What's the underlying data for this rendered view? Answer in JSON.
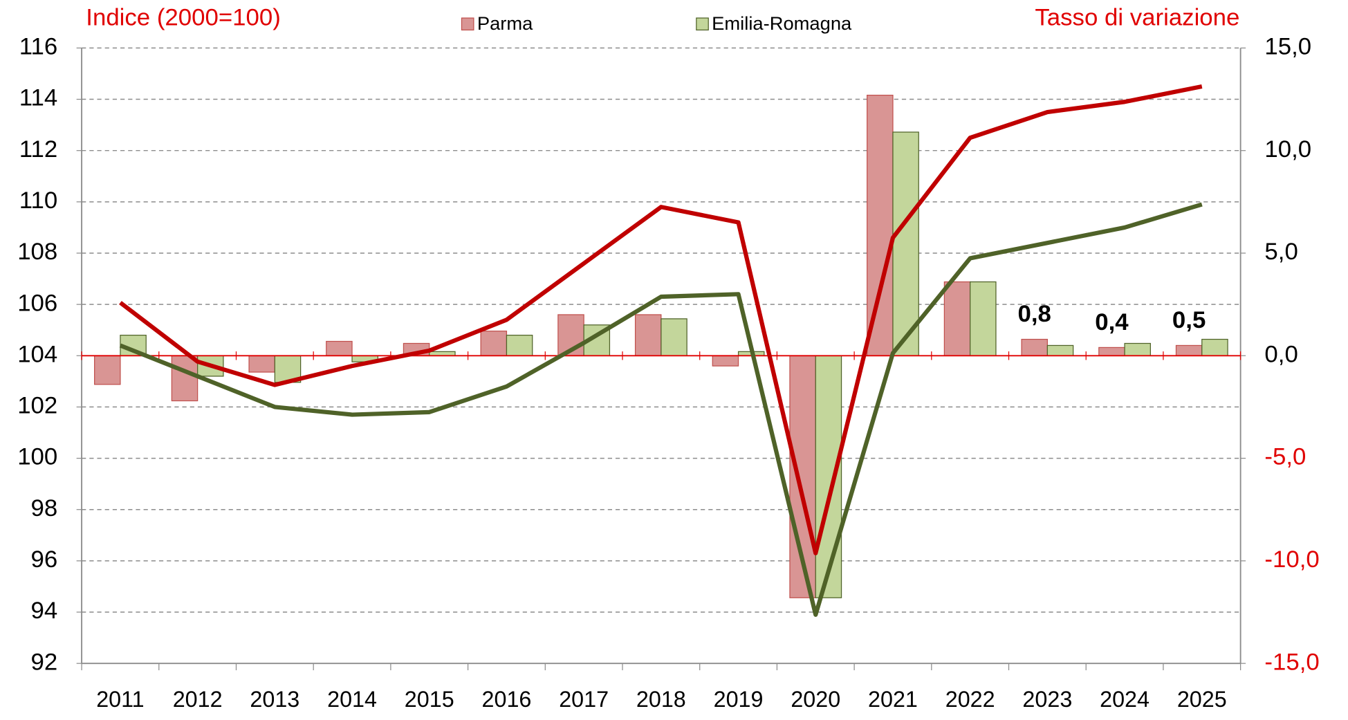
{
  "chart_data": {
    "type": "bar_line",
    "y_axis_title": "Indice (2000=100)",
    "y2_axis_title": "Tasso di variazione",
    "title_color": "#e00000",
    "categories": [
      "2011",
      "2012",
      "2013",
      "2014",
      "2015",
      "2016",
      "2017",
      "2018",
      "2019",
      "2020",
      "2021",
      "2022",
      "2023",
      "2024",
      "2025"
    ],
    "series": [
      {
        "name": "Parma",
        "color": "#d99594",
        "edge": "#c0504d",
        "axis": "y2",
        "values": [
          -1.4,
          -2.2,
          -0.8,
          0.7,
          0.6,
          1.2,
          2.0,
          2.0,
          -0.5,
          -11.8,
          12.7,
          3.6,
          0.8,
          0.4,
          0.5
        ],
        "value_labels": [
          null,
          null,
          null,
          null,
          null,
          null,
          null,
          null,
          null,
          null,
          null,
          null,
          "0,8",
          "0,4",
          "0,5"
        ]
      },
      {
        "name": "Emilia-Romagna",
        "color": "#c3d69b",
        "edge": "#4f6228",
        "axis": "y2",
        "values": [
          1.0,
          -1.0,
          -1.3,
          -0.3,
          0.2,
          1.0,
          1.5,
          1.8,
          0.2,
          -11.8,
          10.9,
          3.6,
          0.5,
          0.6,
          0.8
        ]
      }
    ],
    "line_series": [
      {
        "color": "#c00000",
        "values": [
          106.07,
          103.77,
          102.86,
          103.6,
          104.2,
          105.4,
          107.6,
          109.8,
          109.2,
          96.3,
          108.6,
          112.5,
          113.5,
          113.9,
          114.5
        ]
      },
      {
        "color": "#4f6228",
        "values": [
          104.4,
          103.2,
          102.0,
          101.7,
          101.8,
          102.8,
          104.5,
          106.3,
          106.4,
          93.9,
          104.1,
          107.8,
          108.4,
          109.0,
          109.9
        ]
      }
    ],
    "ylim": [
      92,
      116
    ],
    "yticks": [
      92,
      94,
      96,
      98,
      100,
      102,
      104,
      106,
      108,
      110,
      112,
      114,
      116
    ],
    "y2lim": [
      -15,
      15
    ],
    "y2ticks": [
      {
        "value": -15,
        "label": "-15,0"
      },
      {
        "value": -10,
        "label": "-10,0"
      },
      {
        "value": -5,
        "label": "-5,0"
      },
      {
        "value": 0,
        "label": "0,0"
      },
      {
        "value": 5,
        "label": "5,0"
      },
      {
        "value": 10,
        "label": "10,0"
      },
      {
        "value": 15,
        "label": "15,0"
      }
    ],
    "y2_negative_tick_color": "#e00000",
    "grid": true
  }
}
